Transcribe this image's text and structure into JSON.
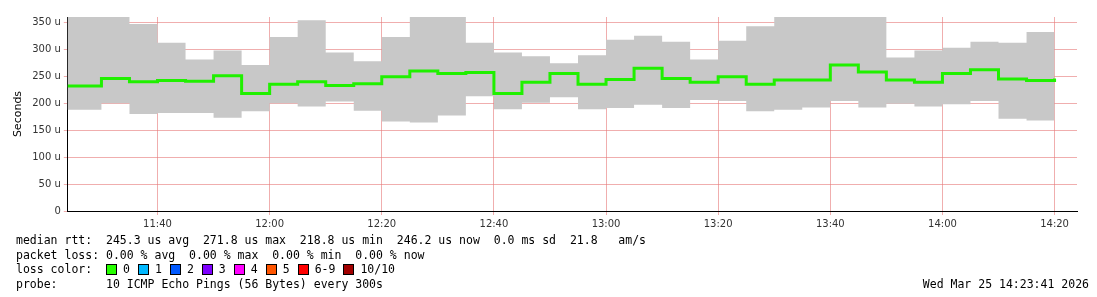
{
  "chart_data": {
    "type": "step",
    "ylabel": "Seconds",
    "x": [
      11.4167,
      11.5,
      11.5833,
      11.6667,
      11.75,
      11.8333,
      11.9167,
      12,
      12.0833,
      12.1667,
      12.25,
      12.3333,
      12.4167,
      12.5,
      12.5833,
      12.6667,
      12.75,
      12.8333,
      12.9167,
      13,
      13.0833,
      13.1667,
      13.25,
      13.3333,
      13.4167,
      13.5,
      13.5833,
      13.6667,
      13.75,
      13.8333,
      13.9167,
      14,
      14.0833,
      14.1667,
      14.25,
      14.3333
    ],
    "series": [
      {
        "color": "#20f000",
        "values": [
          232,
          246,
          240,
          242,
          241,
          251,
          218,
          235,
          240,
          233,
          236,
          249,
          260,
          255,
          257,
          218,
          239,
          255,
          235,
          244,
          265,
          246,
          239,
          249,
          235,
          243,
          243,
          271,
          258,
          243,
          239,
          255,
          262,
          245,
          242,
          246
        ],
        "lower": [
          188,
          200,
          180,
          182,
          182,
          173,
          185,
          200,
          194,
          203,
          186,
          166,
          164,
          177,
          213,
          189,
          201,
          211,
          189,
          191,
          197,
          191,
          206,
          204,
          185,
          188,
          192,
          204,
          192,
          199,
          194,
          198,
          204,
          171,
          168,
          185
        ],
        "upper": [
          360,
          360,
          347,
          312,
          281,
          298,
          271,
          323,
          354,
          294,
          278,
          323,
          360,
          360,
          312,
          294,
          287,
          274,
          289,
          318,
          325,
          314,
          281,
          316,
          343,
          360,
          360,
          360,
          360,
          285,
          298,
          303,
          314,
          312,
          332,
          360
        ]
      }
    ],
    "xlim": [
      11.4,
      14.4
    ],
    "xticks": [
      {
        "value": 11.6667,
        "label": "11:40"
      },
      {
        "value": 12,
        "label": "12:00"
      },
      {
        "value": 12.3333,
        "label": "12:20"
      },
      {
        "value": 12.6667,
        "label": "12:40"
      },
      {
        "value": 13,
        "label": "13:00"
      },
      {
        "value": 13.3333,
        "label": "13:20"
      },
      {
        "value": 13.6667,
        "label": "13:40"
      },
      {
        "value": 14,
        "label": "14:00"
      },
      {
        "value": 14.3333,
        "label": "14:20"
      }
    ],
    "ylim": [
      0,
      360
    ],
    "yticks": [
      0,
      {
        "value": 50,
        "label": "50 u"
      },
      {
        "value": 100,
        "label": "100 u"
      },
      {
        "value": 150,
        "label": "150 u"
      },
      {
        "value": 200,
        "label": "200 u"
      },
      {
        "value": 250,
        "label": "250 u"
      },
      {
        "value": 300,
        "label": "300 u"
      },
      {
        "value": 350,
        "label": "350 u"
      }
    ],
    "grid": true,
    "annotations": [
      "median rtt:  245.3 us avg  271.8 us max  218.8 us min  246.2 us now  0.0 ms sd  21.8   am/s",
      "packet loss: 0.00 % avg  0.00 % max  0.00 % min  0.00 % now",
      "loss color:",
      "0",
      "1",
      "2",
      "3",
      "4",
      "5",
      "6-9",
      "10/10",
      "probe:       10 ICMP Echo Pings (56 Bytes) every 300s",
      "Wed Mar 25 14:23:41 2026"
    ]
  }
}
